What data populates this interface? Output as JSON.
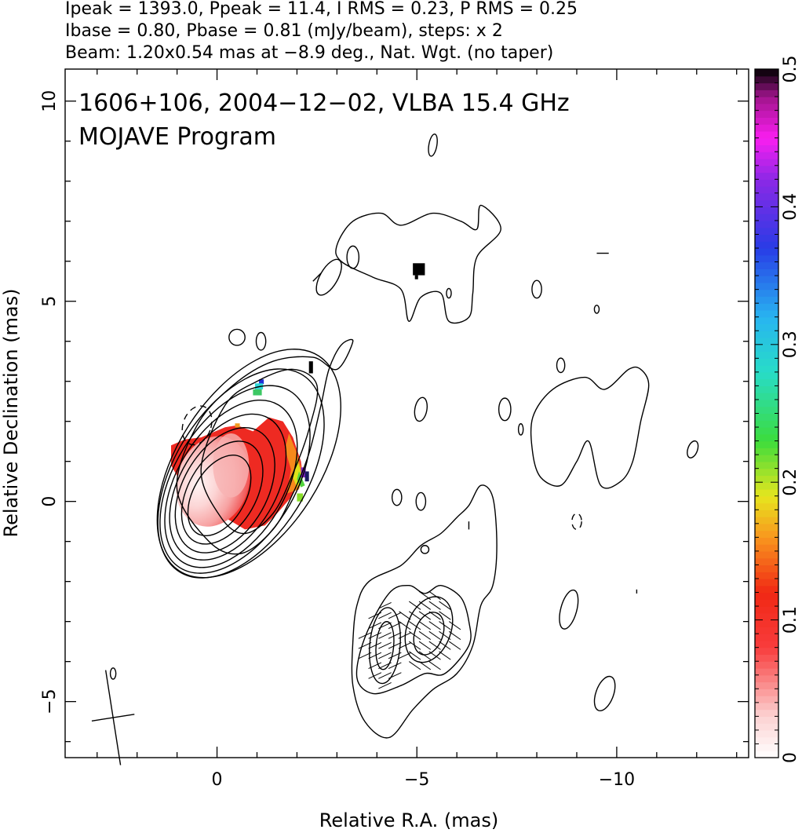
{
  "header": {
    "line1": "Ipeak = 1393.0, Ppeak = 11.4, I RMS = 0.23, P RMS = 0.25",
    "line2": "Ibase = 0.80, Pbase = 0.81 (mJy/beam), steps: x 2",
    "line3": "Beam: 1.20x0.54 mas at −8.9 deg., Nat. Wgt. (no taper)"
  },
  "chart_data": {
    "type": "heatmap",
    "title": "1606+106, 2004−12−02, VLBA 15.4 GHz",
    "subtitle": "MOJAVE Program",
    "xlabel": "Relative R.A. (mas)",
    "ylabel": "Relative Declination (mas)",
    "xlim": [
      3.8,
      -13.3
    ],
    "ylim": [
      -6.4,
      10.8
    ],
    "x_ticks": [
      {
        "value": 0,
        "label": "0"
      },
      {
        "value": -5,
        "label": "−5"
      },
      {
        "value": -10,
        "label": "−10"
      }
    ],
    "y_ticks": [
      {
        "value": -5,
        "label": "−5"
      },
      {
        "value": 0,
        "label": "0"
      },
      {
        "value": 5,
        "label": "5"
      },
      {
        "value": 10,
        "label": "10"
      }
    ],
    "colorbar": {
      "range": [
        0,
        0.5
      ],
      "ticks": [
        {
          "value": 0,
          "label": "0"
        },
        {
          "value": 0.1,
          "label": "0.1"
        },
        {
          "value": 0.2,
          "label": "0.2"
        },
        {
          "value": 0.3,
          "label": "0.3"
        },
        {
          "value": 0.4,
          "label": "0.4"
        },
        {
          "value": 0.5,
          "label": "0.5"
        }
      ]
    },
    "beam": {
      "major_mas": 1.2,
      "minor_mas": 0.54,
      "pa_deg": -8.9,
      "center": [
        2.6,
        -5.4
      ]
    },
    "core": {
      "x": 0.0,
      "y": 0.2
    },
    "core_contours": [
      {
        "cx": -0.06,
        "cy": 0.15,
        "rx": 0.65,
        "ry": 1.1,
        "rot": 30
      },
      {
        "cx": -0.13,
        "cy": 0.22,
        "rx": 0.85,
        "ry": 1.4,
        "rot": 30
      },
      {
        "cx": -0.2,
        "cy": 0.28,
        "rx": 1.05,
        "ry": 1.7,
        "rot": 30
      },
      {
        "cx": -0.27,
        "cy": 0.36,
        "rx": 1.2,
        "ry": 2.0,
        "rot": 31
      },
      {
        "cx": -0.35,
        "cy": 0.44,
        "rx": 1.35,
        "ry": 2.3,
        "rot": 31
      },
      {
        "cx": -0.45,
        "cy": 0.55,
        "rx": 1.5,
        "ry": 2.6,
        "rot": 32
      },
      {
        "cx": -0.6,
        "cy": 0.7,
        "rx": 1.65,
        "ry": 2.9,
        "rot": 32
      },
      {
        "cx": -0.8,
        "cy": 0.95,
        "rx": 1.78,
        "ry": 3.2,
        "rot": 33
      }
    ],
    "polygon_contours": [
      [
        [
          1.0,
          0.3
        ],
        [
          0.2,
          -1.0
        ],
        [
          -0.6,
          -1.3
        ],
        [
          -1.4,
          -0.7
        ],
        [
          -1.9,
          0.2
        ],
        [
          -2.3,
          1.2
        ],
        [
          -2.6,
          2.4
        ],
        [
          -2.8,
          3.3
        ],
        [
          -3.1,
          3.9
        ],
        [
          -3.4,
          4.0
        ],
        [
          -3.0,
          3.3
        ],
        [
          -2.4,
          3.6
        ],
        [
          -1.4,
          3.5
        ],
        [
          -0.4,
          2.9
        ],
        [
          0.5,
          1.9
        ]
      ],
      [
        [
          0.4,
          0.8
        ],
        [
          -0.1,
          -0.4
        ],
        [
          -0.7,
          -0.8
        ],
        [
          -1.4,
          -0.3
        ],
        [
          -1.9,
          0.7
        ],
        [
          -2.3,
          1.8
        ],
        [
          -2.5,
          2.9
        ],
        [
          -1.9,
          3.3
        ],
        [
          -1.0,
          3.0
        ],
        [
          -0.2,
          2.4
        ]
      ],
      [
        [
          -3.0,
          6.4
        ],
        [
          -3.4,
          7.0
        ],
        [
          -4.1,
          7.2
        ],
        [
          -4.6,
          6.9
        ],
        [
          -5.4,
          7.2
        ],
        [
          -6.1,
          7.0
        ],
        [
          -6.5,
          6.8
        ],
        [
          -6.6,
          7.4
        ],
        [
          -7.1,
          6.8
        ],
        [
          -6.5,
          6.1
        ],
        [
          -6.4,
          5.2
        ],
        [
          -6.3,
          4.6
        ],
        [
          -5.8,
          4.5
        ],
        [
          -5.6,
          5.2
        ],
        [
          -5.1,
          5.1
        ],
        [
          -4.8,
          4.5
        ],
        [
          -4.6,
          5.3
        ],
        [
          -3.9,
          5.6
        ],
        [
          -3.1,
          6.0
        ]
      ],
      [
        [
          -7.9,
          2.1
        ],
        [
          -8.4,
          2.8
        ],
        [
          -9.2,
          3.1
        ],
        [
          -9.7,
          2.8
        ],
        [
          -10.3,
          3.3
        ],
        [
          -10.6,
          3.3
        ],
        [
          -10.8,
          2.9
        ],
        [
          -10.6,
          2.0
        ],
        [
          -10.4,
          1.0
        ],
        [
          -10.1,
          0.5
        ],
        [
          -9.6,
          0.4
        ],
        [
          -9.3,
          1.5
        ],
        [
          -9.0,
          1.0
        ],
        [
          -8.6,
          0.4
        ],
        [
          -8.1,
          0.6
        ],
        [
          -7.9,
          1.2
        ]
      ],
      [
        [
          -3.4,
          -3.5
        ],
        [
          -3.5,
          -2.6
        ],
        [
          -3.8,
          -2.0
        ],
        [
          -4.6,
          -1.6
        ],
        [
          -5.1,
          -1.1
        ],
        [
          -5.6,
          -0.8
        ],
        [
          -6.0,
          -0.4
        ],
        [
          -6.3,
          -0.1
        ],
        [
          -6.6,
          0.4
        ],
        [
          -6.9,
          0.1
        ],
        [
          -7.0,
          -1.1
        ],
        [
          -6.9,
          -2.1
        ],
        [
          -6.6,
          -2.6
        ],
        [
          -6.4,
          -3.6
        ],
        [
          -6.0,
          -4.3
        ],
        [
          -5.4,
          -4.7
        ],
        [
          -4.9,
          -5.2
        ],
        [
          -4.3,
          -5.9
        ],
        [
          -3.7,
          -5.5
        ],
        [
          -3.4,
          -4.6
        ]
      ],
      [
        [
          -3.5,
          -4.4
        ],
        [
          -3.7,
          -3.4
        ],
        [
          -4.3,
          -2.3
        ],
        [
          -4.8,
          -2.1
        ],
        [
          -5.2,
          -2.3
        ],
        [
          -5.6,
          -2.1
        ],
        [
          -6.1,
          -2.4
        ],
        [
          -6.3,
          -3.0
        ],
        [
          -6.3,
          -3.6
        ],
        [
          -5.7,
          -4.3
        ],
        [
          -5.2,
          -4.3
        ],
        [
          -4.6,
          -4.6
        ],
        [
          -3.9,
          -4.8
        ]
      ]
    ],
    "small_contours": [
      {
        "cx": 0.5,
        "cy": 1.9,
        "rx": 0.35,
        "ry": 0.5,
        "rot": 20,
        "dashed": true
      },
      {
        "cx": -0.5,
        "cy": 4.1,
        "rx": 0.2,
        "ry": 0.2,
        "rot": 0,
        "dashed": false
      },
      {
        "cx": -1.1,
        "cy": 4.0,
        "rx": 0.12,
        "ry": 0.22,
        "rot": 0,
        "dashed": false
      },
      {
        "cx": -2.8,
        "cy": 5.6,
        "rx": 0.22,
        "ry": 0.5,
        "rot": 30,
        "dashed": false
      },
      {
        "cx": -3.4,
        "cy": 6.1,
        "rx": 0.15,
        "ry": 0.28,
        "rot": 0,
        "dashed": false
      },
      {
        "cx": -5.4,
        "cy": 8.9,
        "rx": 0.1,
        "ry": 0.28,
        "rot": 10,
        "dashed": false
      },
      {
        "cx": -5.1,
        "cy": 2.3,
        "rx": 0.15,
        "ry": 0.3,
        "rot": 10,
        "dashed": false
      },
      {
        "cx": -4.5,
        "cy": 0.1,
        "rx": 0.12,
        "ry": 0.2,
        "rot": 0,
        "dashed": false
      },
      {
        "cx": -5.1,
        "cy": 0.0,
        "rx": 0.12,
        "ry": 0.22,
        "rot": 0,
        "dashed": false
      },
      {
        "cx": -5.2,
        "cy": -1.2,
        "rx": 0.1,
        "ry": 0.1,
        "rot": 0,
        "dashed": false
      },
      {
        "cx": -7.2,
        "cy": 2.3,
        "rx": 0.15,
        "ry": 0.28,
        "rot": 0,
        "dashed": false
      },
      {
        "cx": -7.6,
        "cy": 1.8,
        "rx": 0.06,
        "ry": 0.14,
        "rot": 0,
        "dashed": false
      },
      {
        "cx": -8.0,
        "cy": 5.3,
        "rx": 0.12,
        "ry": 0.22,
        "rot": 0,
        "dashed": false
      },
      {
        "cx": -8.6,
        "cy": 3.4,
        "rx": 0.1,
        "ry": 0.18,
        "rot": 0,
        "dashed": false
      },
      {
        "cx": -9.5,
        "cy": 4.8,
        "rx": 0.06,
        "ry": 0.1,
        "rot": 0,
        "dashed": false
      },
      {
        "cx": -5.8,
        "cy": 5.2,
        "rx": 0.06,
        "ry": 0.12,
        "rot": 0,
        "dashed": false
      },
      {
        "cx": -11.9,
        "cy": 1.3,
        "rx": 0.12,
        "ry": 0.22,
        "rot": 20,
        "dashed": false
      },
      {
        "cx": -9.0,
        "cy": -0.5,
        "rx": 0.12,
        "ry": 0.2,
        "rot": 0,
        "dashed": true
      },
      {
        "cx": -9.7,
        "cy": -4.8,
        "rx": 0.22,
        "ry": 0.45,
        "rot": 20,
        "dashed": false
      },
      {
        "cx": -8.8,
        "cy": -2.7,
        "rx": 0.2,
        "ry": 0.5,
        "rot": 15,
        "dashed": false
      },
      {
        "cx": 2.6,
        "cy": -4.3,
        "rx": 0.07,
        "ry": 0.14,
        "rot": 0,
        "dashed": false
      },
      {
        "cx": -4.2,
        "cy": -3.6,
        "rx": 0.38,
        "ry": 0.95,
        "rot": 5,
        "dashed": false
      },
      {
        "cx": -4.2,
        "cy": -3.6,
        "rx": 0.22,
        "ry": 0.6,
        "rot": 5,
        "dashed": false
      },
      {
        "cx": -5.3,
        "cy": -3.2,
        "rx": 0.55,
        "ry": 0.85,
        "rot": 20,
        "dashed": false
      },
      {
        "cx": -5.3,
        "cy": -3.3,
        "rx": 0.35,
        "ry": 0.55,
        "rot": 20,
        "dashed": false
      }
    ],
    "evpa_regions": [
      {
        "x0": -3.7,
        "x1": -6.1,
        "y0": -4.6,
        "y1": -2.3,
        "step": 0.25
      }
    ],
    "frac_pol_pixels": [
      {
        "x": 0.0,
        "y": 0.2,
        "v": 0.0
      },
      {
        "x": 0.4,
        "y": 0.6,
        "v": 0.02
      },
      {
        "x": 0.2,
        "y": -0.4,
        "v": 0.01
      }
    ]
  }
}
